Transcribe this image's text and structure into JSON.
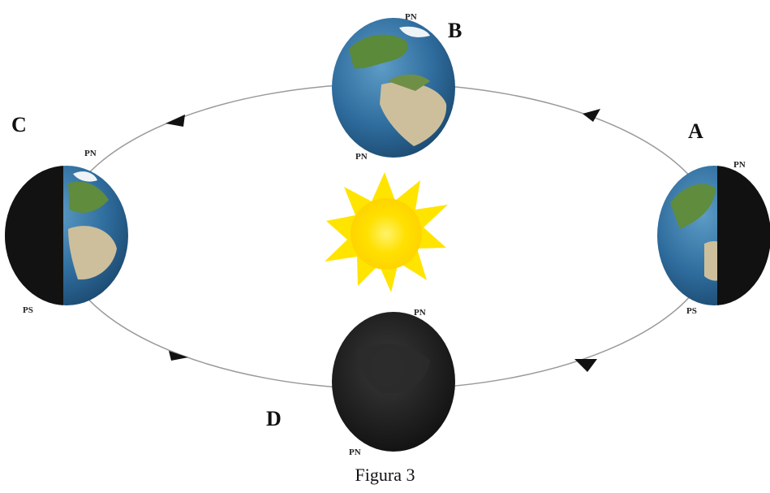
{
  "diagram": {
    "positions": {
      "a": "A",
      "b": "B",
      "c": "C",
      "d": "D"
    },
    "poles": {
      "a_north": "PN",
      "a_south": "PS",
      "b_north": "PN",
      "b_south": "PN",
      "c_north": "PN",
      "c_south": "PS",
      "d_north": "PN",
      "d_south": "PN"
    },
    "caption": "Figura 3"
  }
}
